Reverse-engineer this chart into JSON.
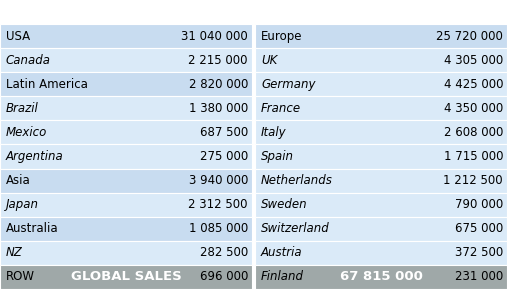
{
  "left_rows": [
    [
      "USA",
      "31 040 000",
      false
    ],
    [
      "Canada",
      "2 215 000",
      true
    ],
    [
      "Latin America",
      "2 820 000",
      false
    ],
    [
      "Brazil",
      "1 380 000",
      true
    ],
    [
      "Mexico",
      "687 500",
      true
    ],
    [
      "Argentina",
      "275 000",
      true
    ],
    [
      "Asia",
      "3 940 000",
      false
    ],
    [
      "Japan",
      "2 312 500",
      true
    ],
    [
      "Australia",
      "1 085 000",
      false
    ],
    [
      "NZ",
      "282 500",
      true
    ],
    [
      "ROW",
      "696 000",
      false
    ]
  ],
  "right_rows": [
    [
      "Europe",
      "25 720 000",
      false
    ],
    [
      "UK",
      "4 305 000",
      true
    ],
    [
      "Germany",
      "4 425 000",
      true
    ],
    [
      "France",
      "4 350 000",
      true
    ],
    [
      "Italy",
      "2 608 000",
      true
    ],
    [
      "Spain",
      "1 715 000",
      true
    ],
    [
      "Netherlands",
      "1 212 500",
      true
    ],
    [
      "Sweden",
      "790 000",
      true
    ],
    [
      "Switzerland",
      "675 000",
      true
    ],
    [
      "Austria",
      "372 500",
      true
    ],
    [
      "Finland",
      "231 000",
      true
    ]
  ],
  "footer_left": "GLOBAL SALES",
  "footer_right": "67 815 000",
  "bg_color": "#FFFFFF",
  "row_color_a": "#C8DCF0",
  "row_color_b": "#DAEAF8",
  "row_color_header": "#A8C8E0",
  "footer_color": "#9FA8A8",
  "footer_text_color": "#FFFFFF",
  "text_color": "#000000",
  "n_rows": 11,
  "fig_w": 5.07,
  "fig_h": 2.89
}
